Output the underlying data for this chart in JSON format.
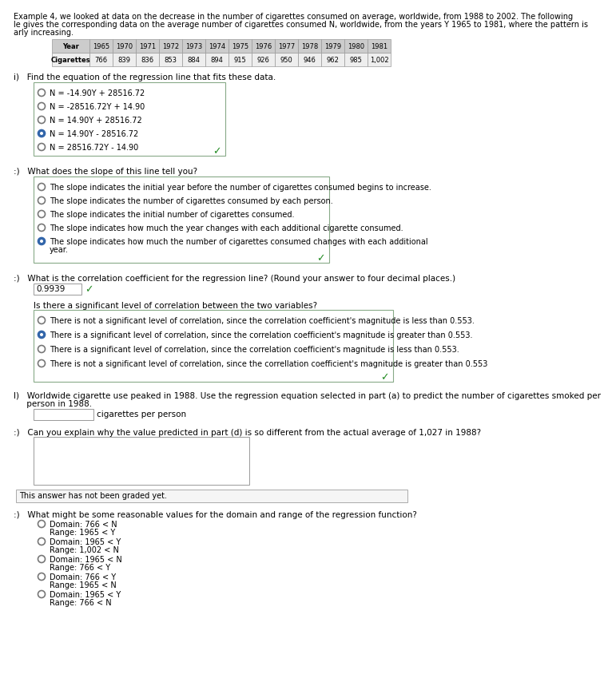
{
  "intro_lines": [
    "Example 4, we looked at data on the decrease in the number of cigarettes consumed on average, worldwide, from 1988 to 2002. The following",
    "le gives the corresponding data on the average number of cigarettes consumed N, worldwide, from the years Y 1965 to 1981, where the pattern is",
    "arly increasing."
  ],
  "table_years": [
    "Year",
    "1965",
    "1970",
    "1971",
    "1972",
    "1973",
    "1974",
    "1975",
    "1976",
    "1977",
    "1978",
    "1979",
    "1980",
    "1981"
  ],
  "table_cigs": [
    "Cigarettes",
    "766",
    "839",
    "836",
    "853",
    "884",
    "894",
    "915",
    "926",
    "950",
    "946",
    "962",
    "985",
    "1,002"
  ],
  "part_a_label": "i)   Find the equation of the regression line that fits these data.",
  "part_a_options": [
    "N = -14.90Y + 28516.72",
    "N = -28516.72Y + 14.90",
    "N = 14.90Y + 28516.72",
    "N = 14.90Y - 28516.72",
    "N = 28516.72Y - 14.90"
  ],
  "part_a_selected": 3,
  "part_b_label": ":)   What does the slope of this line tell you?",
  "part_b_options": [
    "The slope indicates the initial year before the number of cigarettes consumed begins to increase.",
    "The slope indicates the number of cigarettes consumed by each person.",
    "The slope indicates the initial number of cigarettes consumed.",
    "The slope indicates how much the year changes with each additional cigarette consumed.",
    "The slope indicates how much the number of cigarettes consumed changes with each additional year."
  ],
  "part_b_selected": 4,
  "part_b_wrap_last": true,
  "part_c_label": ":)   What is the correlation coefficient for the regression line? (Round your answer to four decimal places.)",
  "part_c_answer": "0.9939",
  "part_c_sig_label": "Is there a significant level of correlation between the two variables?",
  "part_c_sig_options": [
    "There is not a significant level of correlation, since the correlation coefficient's magnitude is less than 0.553.",
    "There is a significant level of correlation, since the correlation coefficient's magnitude is greater than 0.553.",
    "There is a significant level of correlation, since the correlation coefficient's magnitude is less than 0.553.",
    "There is not a significant level of correlation, since the correllation coefficient's magnitude is greater than 0.553"
  ],
  "part_c_sig_selected": 1,
  "part_d_label": "l)   Worldwide cigarette use peaked in 1988. Use the regression equation selected in part (a) to predict the number of cigarettes smoked per person in 1988.",
  "part_d_unit": "cigarettes per person",
  "part_e_label": ":)   Can you explain why the value predicted in part (d) is so different from the actual average of 1,027 in 1988?",
  "part_e_graded": "This answer has not been graded yet.",
  "part_f_label": ":)   What might be some reasonable values for the domain and range of the regression function?",
  "part_f_options": [
    "Domain: 766 < N\n    Range: 1965 < Y",
    "Domain: 1965 < Y\n    Range: 1,002 < N",
    "Domain: 1965 < N\n    Range: 766 < Y",
    "Domain: 766 < Y\n    Range: 1965 < N",
    "Domain: 1965 < Y\n    Range: 766 < N"
  ],
  "part_f_selected": -1,
  "bg_color": "#ffffff",
  "box_border_color": "#88aa88",
  "selected_radio_color": "#3366aa",
  "check_color": "#228B22",
  "text_color": "#000000",
  "table_header_bg": "#cccccc",
  "table_row_bg": "#eeeeee"
}
